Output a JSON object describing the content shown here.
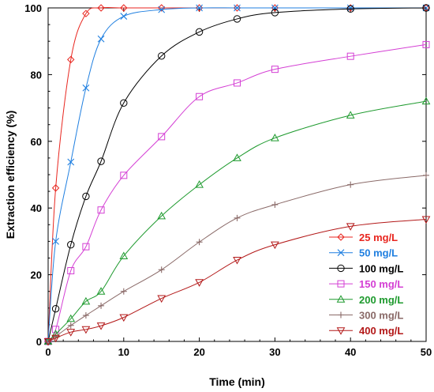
{
  "chart_data": {
    "type": "line",
    "title": "",
    "xlabel": "Time (min)",
    "ylabel": "Extraction efficiency (%)",
    "xlim": [
      0,
      50
    ],
    "ylim": [
      0,
      100
    ],
    "xticks": [
      0,
      10,
      20,
      30,
      40,
      50
    ],
    "yticks": [
      0,
      20,
      40,
      60,
      80,
      100
    ],
    "grid": false,
    "legend_position": "bottom-right",
    "series": [
      {
        "name": "25 mg/L",
        "color": "#e8261f",
        "marker": "diamond",
        "x": [
          0,
          1,
          3,
          5,
          7,
          10,
          15,
          20,
          25,
          30,
          40,
          50
        ],
        "y": [
          0,
          46,
          84.5,
          98.3,
          100,
          100,
          100,
          100,
          100,
          100,
          100,
          100
        ]
      },
      {
        "name": "50 mg/L",
        "color": "#1f7fe0",
        "marker": "x",
        "x": [
          0,
          1,
          3,
          5,
          7,
          10,
          15,
          20,
          25,
          30,
          40,
          50
        ],
        "y": [
          0,
          30,
          53.8,
          76,
          90.7,
          97.5,
          99.5,
          100,
          100,
          100,
          100,
          100
        ]
      },
      {
        "name": "100 mg/L",
        "color": "#000000",
        "marker": "circle",
        "x": [
          0,
          1,
          3,
          5,
          7,
          10,
          15,
          20,
          25,
          30,
          40,
          50
        ],
        "y": [
          0,
          9.8,
          29,
          43.5,
          54,
          71.5,
          85.6,
          92.8,
          96.7,
          98.6,
          99.7,
          100
        ]
      },
      {
        "name": "150 mg/L",
        "color": "#d43fd4",
        "marker": "square",
        "x": [
          0,
          1,
          3,
          5,
          7,
          10,
          15,
          20,
          25,
          30,
          40,
          50
        ],
        "y": [
          0,
          3.6,
          21.2,
          28.4,
          39.4,
          49.8,
          61.4,
          73.4,
          77.5,
          81.6,
          85.5,
          89
        ]
      },
      {
        "name": "200 mg/L",
        "color": "#1e9a2e",
        "marker": "triangle",
        "x": [
          0,
          1,
          3,
          5,
          7,
          10,
          15,
          20,
          25,
          30,
          40,
          50
        ],
        "y": [
          0,
          2.2,
          6.8,
          12,
          15,
          25.6,
          37.6,
          47,
          55,
          61,
          67.8,
          72
        ]
      },
      {
        "name": "300 mg/L",
        "color": "#8a6a68",
        "marker": "plus",
        "x": [
          0,
          1,
          3,
          5,
          7,
          10,
          15,
          20,
          25,
          30,
          40,
          50
        ],
        "y": [
          0,
          1.5,
          4.8,
          7.8,
          10.7,
          15,
          21.5,
          29.8,
          37,
          41,
          47,
          49.8
        ]
      },
      {
        "name": "400 mg/L",
        "color": "#b31818",
        "marker": "triangle-down",
        "x": [
          0,
          1,
          3,
          5,
          7,
          10,
          15,
          20,
          25,
          30,
          40,
          50
        ],
        "y": [
          0,
          1,
          2.8,
          3.6,
          4.7,
          7.2,
          12.9,
          17.7,
          24.4,
          29,
          34.5,
          36.6
        ]
      }
    ]
  }
}
